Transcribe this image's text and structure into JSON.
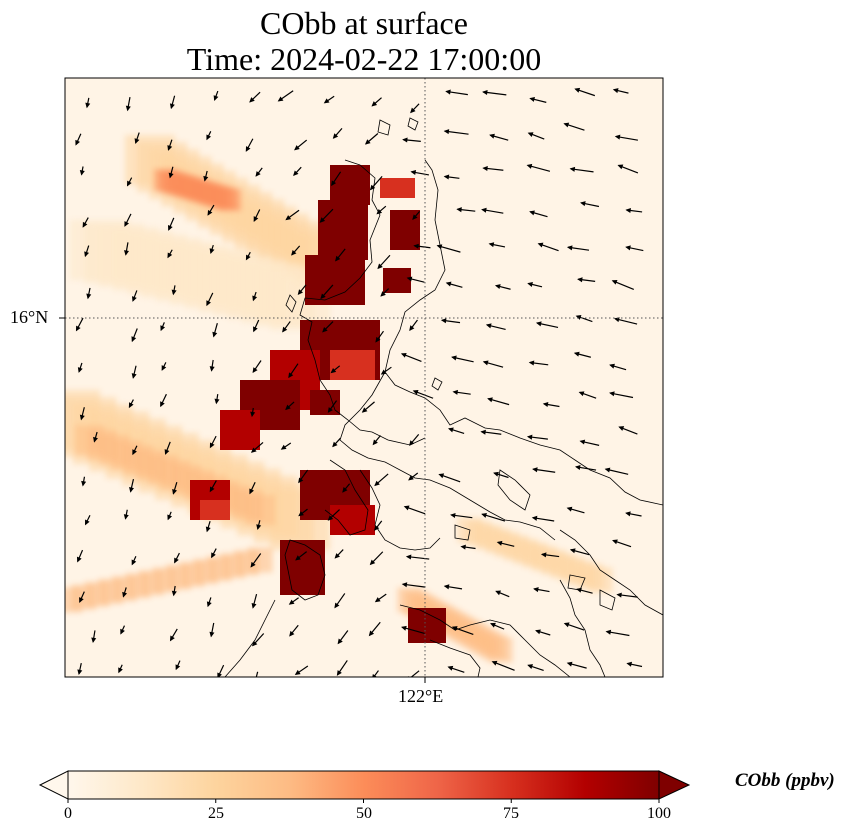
{
  "title": {
    "line1": "CObb at surface",
    "line2": "Time: 2024-02-22 17:00:00"
  },
  "axes": {
    "lat_tick_label": "16°N",
    "lon_tick_label": "122°E"
  },
  "colorbar": {
    "label": "CObb (ppbv)",
    "ticks": [
      "0",
      "25",
      "50",
      "75",
      "100"
    ],
    "range": [
      0,
      100
    ],
    "colormap": "OrRd",
    "extend": "both",
    "colors": [
      "#fff7ec",
      "#fee8c8",
      "#fdd49e",
      "#fdbb84",
      "#fc8d59",
      "#ef6548",
      "#d7301f",
      "#b30000",
      "#7f0000"
    ]
  },
  "map": {
    "gridlines": "dotted",
    "coastlines": true,
    "wind_vectors": true
  }
}
